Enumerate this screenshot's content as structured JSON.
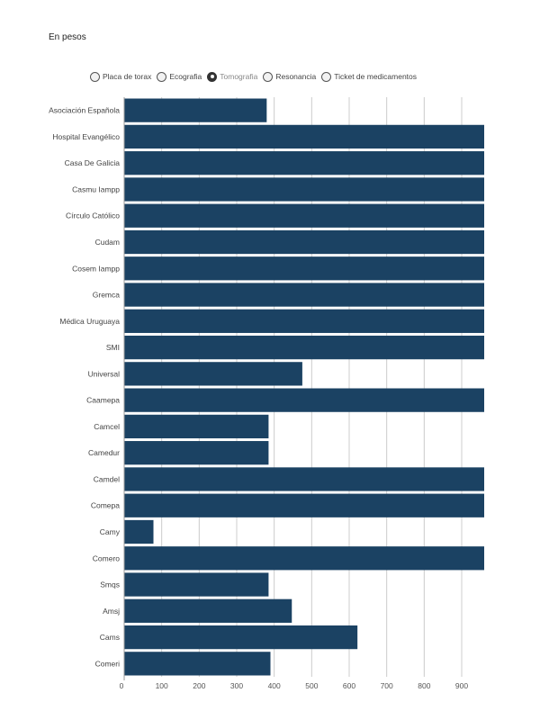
{
  "subtitle": "En pesos",
  "filters": [
    {
      "label": "Placa de torax",
      "selected": false
    },
    {
      "label": "Ecografia",
      "selected": false
    },
    {
      "label": "Tomografia",
      "selected": true
    },
    {
      "label": "Resonancia",
      "selected": false
    },
    {
      "label": "Ticket de medicamentos",
      "selected": false
    }
  ],
  "colors": {
    "bar": "#1b4263",
    "grid": "#cccccc",
    "axis": "#999999"
  },
  "chart_data": {
    "type": "bar",
    "orientation": "horizontal",
    "title": "",
    "subtitle": "En pesos",
    "xlabel": "",
    "ylabel": "",
    "xlim": [
      0,
      960
    ],
    "ticks": [
      0,
      100,
      200,
      300,
      400,
      500,
      600,
      700,
      800,
      900
    ],
    "grid": true,
    "categories": [
      "Asociación Española",
      "Hospital Evangélico",
      "Casa De Galicia",
      "Casmu Iampp",
      "Círculo Católico",
      "Cudam",
      "Cosem Iampp",
      "Gremca",
      "Médica Uruguaya",
      "SMI",
      "Universal",
      "Caamepa",
      "Camcel",
      "Camedur",
      "Camdel",
      "Comepa",
      "Camy",
      "Comero",
      "Smqs",
      "Amsj",
      "Cams",
      "Comeri"
    ],
    "values": [
      380,
      960,
      960,
      960,
      960,
      960,
      960,
      960,
      960,
      960,
      475,
      960,
      385,
      385,
      960,
      960,
      78,
      960,
      385,
      447,
      622,
      390
    ]
  }
}
